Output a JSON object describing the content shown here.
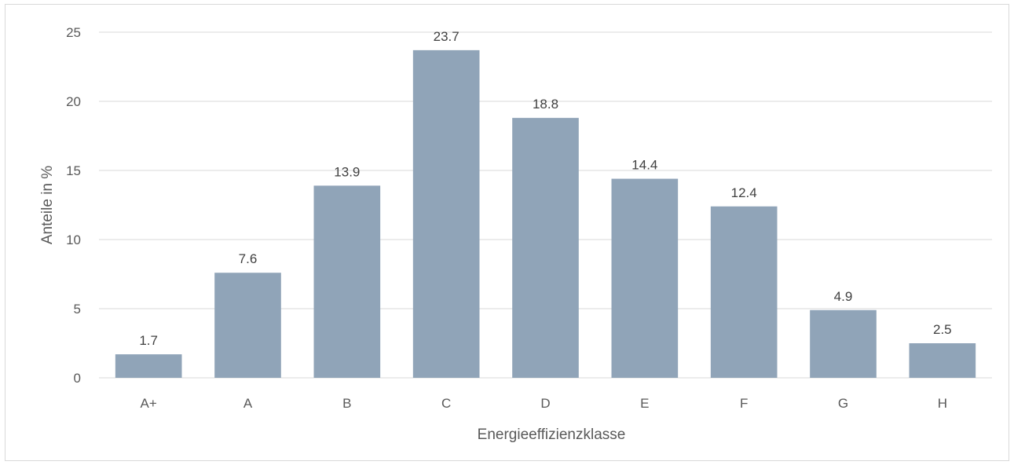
{
  "chart_data": {
    "type": "bar",
    "title": "",
    "categories": [
      "A+",
      "A",
      "B",
      "C",
      "D",
      "E",
      "F",
      "G",
      "H"
    ],
    "values": [
      1.7,
      7.6,
      13.9,
      23.7,
      18.8,
      14.4,
      12.4,
      4.9,
      2.5
    ],
    "data_labels": [
      "1.7",
      "7.6",
      "13.9",
      "23.7",
      "18.8",
      "14.4",
      "12.4",
      "4.9",
      "2.5"
    ],
    "xlabel": "Energieeffizienzklasse",
    "ylabel": "Anteile in %",
    "ylim": [
      0,
      25
    ],
    "yticks": [
      0,
      5,
      10,
      15,
      20,
      25
    ],
    "grid": true,
    "legend": "none",
    "colors": {
      "bar": "#90a4b8",
      "grid": "#d9d9d9",
      "text": "#595959"
    }
  }
}
